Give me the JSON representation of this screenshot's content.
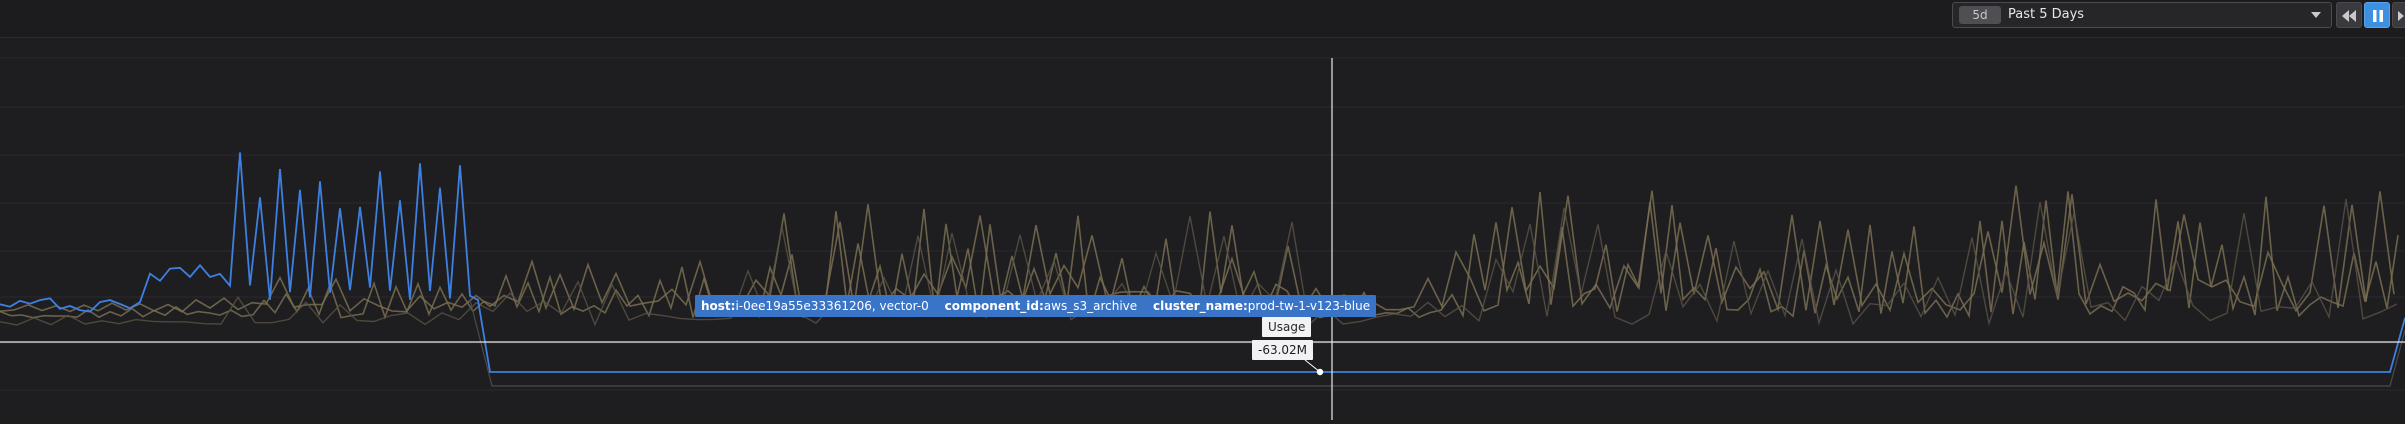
{
  "toolbar": {
    "range_badge": "5d",
    "range_label": "Past 5 Days"
  },
  "colors": {
    "background": "#1e1e20",
    "highlight_series": "#3d80e0",
    "other_series": "#7a6e52",
    "crosshair": "#e8e8e8"
  },
  "tooltip": {
    "tags": [
      {
        "key": "host:",
        "value": "i-0ee19a55e33361206, vector-0"
      },
      {
        "key": "component_id:",
        "value": "aws_s3_archive"
      },
      {
        "key": "cluster_name:",
        "value": "prod-tw-1-v123-blue"
      }
    ],
    "metric_label": "Usage",
    "value": "-63.02M"
  },
  "chart_data": {
    "type": "line",
    "x_range_label": "Past 5 Days",
    "series_count": 3,
    "highlighted_value": -63020000
  }
}
